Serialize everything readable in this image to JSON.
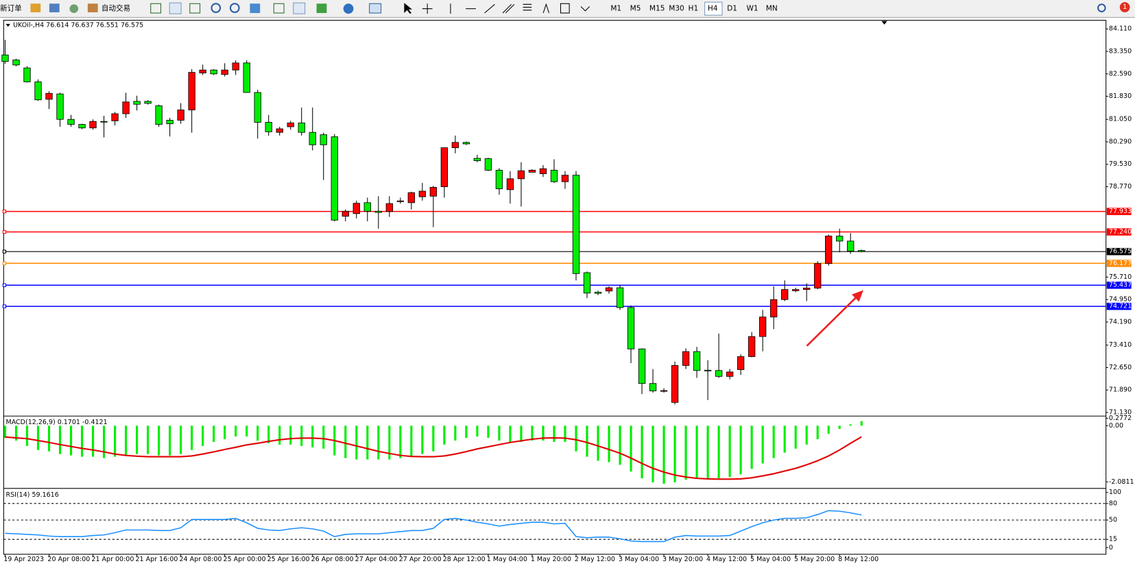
{
  "toolbar": {
    "new_order": "新订单",
    "auto_trading": "自动交易",
    "timeframes": [
      "M1",
      "M5",
      "M15",
      "M30",
      "H1",
      "H4",
      "D1",
      "W1",
      "MN"
    ],
    "notifications": 1
  },
  "chart_data": [
    {
      "type": "candlestick",
      "title": "UKOil-,H4  76.614 76.637 76.551 76.575",
      "up_color": "#ff0000",
      "down_color": "#00ee00",
      "categories": [
        "19 Apr 2023",
        null,
        null,
        null,
        "20 Apr 08:00",
        null,
        null,
        null,
        "21 Apr 00:00",
        null,
        null,
        null,
        "21 Apr 16:00",
        null,
        null,
        null,
        "24 Apr 08:00",
        null,
        null,
        null,
        "25 Apr 00:00",
        null,
        null,
        null,
        "25 Apr 16:00",
        null,
        null,
        null,
        "26 Apr 08:00",
        null,
        null,
        null,
        "27 Apr 04:00",
        null,
        null,
        null,
        "27 Apr 20:00",
        null,
        null,
        null,
        "28 Apr 12:00",
        null,
        null,
        null,
        "1 May 04:00",
        null,
        null,
        null,
        "1 May 20:00",
        null,
        null,
        null,
        "2 May 12:00",
        null,
        null,
        null,
        "3 May 04:00",
        null,
        null,
        null,
        "3 May 20:00",
        null,
        null,
        null,
        "4 May 12:00",
        null,
        null,
        null,
        "5 May 04:00",
        null,
        null,
        null,
        "5 May 20:00",
        null,
        null,
        null,
        "8 May 12:00",
        null,
        null
      ],
      "open": [
        83.23,
        83.06,
        82.79,
        82.32,
        81.73,
        81.91,
        81.05,
        80.88,
        80.76,
        80.98,
        81.0,
        81.24,
        81.66,
        81.66,
        81.51,
        81.02,
        81.02,
        81.37,
        82.62,
        82.72,
        82.57,
        82.72,
        82.96,
        81.96,
        80.95,
        80.61,
        80.8,
        80.93,
        80.61,
        80.53,
        80.46,
        77.77,
        77.86,
        78.23,
        77.94,
        77.93,
        78.28,
        78.23,
        78.43,
        78.45,
        78.77,
        80.09,
        80.27,
        79.73,
        79.72,
        79.33,
        78.67,
        79.04,
        79.26,
        79.21,
        79.33,
        78.94,
        79.16,
        75.86,
        75.2,
        75.24,
        75.35,
        74.68,
        73.28,
        72.11,
        71.86,
        71.47,
        72.72,
        73.19,
        72.56,
        72.55,
        72.35,
        72.58,
        73.02,
        73.7,
        74.36,
        74.95,
        75.25,
        75.29,
        75.34,
        76.17,
        77.1,
        76.93,
        76.614
      ],
      "high": [
        83.74,
        83.1,
        82.85,
        82.4,
        82.0,
        81.95,
        81.2,
        80.9,
        81.05,
        81.17,
        81.3,
        81.95,
        81.85,
        81.7,
        81.55,
        81.1,
        81.6,
        82.75,
        82.9,
        82.75,
        82.95,
        83.05,
        83.05,
        82.05,
        81.2,
        80.8,
        81.0,
        81.45,
        81.45,
        80.6,
        80.55,
        78.0,
        78.3,
        78.4,
        78.45,
        78.45,
        78.4,
        78.6,
        78.9,
        78.8,
        80.1,
        80.5,
        80.3,
        79.85,
        79.75,
        79.4,
        79.3,
        79.6,
        79.36,
        79.5,
        79.7,
        79.3,
        79.3,
        75.9,
        75.25,
        75.4,
        75.45,
        74.75,
        73.3,
        72.6,
        71.95,
        72.85,
        73.3,
        73.35,
        72.9,
        73.8,
        72.6,
        73.1,
        73.85,
        74.6,
        75.4,
        75.6,
        75.35,
        75.5,
        76.25,
        77.15,
        77.35,
        77.2,
        76.637
      ],
      "low": [
        82.93,
        82.85,
        82.3,
        81.68,
        81.4,
        80.8,
        80.8,
        80.72,
        80.7,
        80.44,
        80.85,
        81.1,
        81.35,
        81.55,
        80.8,
        80.47,
        80.9,
        80.6,
        82.55,
        82.55,
        82.5,
        82.55,
        81.95,
        80.4,
        80.5,
        80.5,
        80.7,
        80.5,
        80.0,
        79.0,
        77.6,
        77.6,
        77.7,
        77.6,
        77.35,
        77.75,
        78.2,
        78.0,
        78.3,
        77.4,
        78.4,
        79.9,
        80.18,
        79.6,
        79.3,
        78.5,
        78.2,
        78.1,
        79.25,
        79.1,
        78.9,
        78.7,
        75.6,
        75.0,
        75.1,
        75.15,
        74.6,
        72.8,
        71.75,
        71.8,
        71.8,
        71.4,
        72.6,
        72.3,
        71.55,
        72.3,
        72.25,
        72.4,
        73.0,
        73.2,
        73.95,
        74.9,
        75.2,
        74.9,
        75.3,
        76.1,
        76.55,
        76.5,
        76.551
      ],
      "close": [
        83.01,
        82.89,
        82.32,
        81.71,
        81.93,
        81.05,
        80.88,
        80.76,
        80.98,
        80.97,
        81.24,
        81.64,
        81.56,
        81.59,
        80.88,
        80.9,
        81.37,
        82.64,
        82.72,
        82.59,
        82.72,
        82.96,
        81.96,
        80.95,
        80.63,
        80.73,
        80.93,
        80.61,
        80.19,
        80.19,
        77.64,
        77.94,
        78.21,
        77.94,
        77.9,
        78.2,
        78.29,
        78.57,
        78.62,
        78.75,
        80.09,
        80.27,
        80.22,
        79.65,
        79.33,
        78.7,
        79.04,
        79.31,
        79.33,
        79.38,
        78.94,
        79.16,
        75.83,
        75.17,
        75.16,
        75.35,
        74.68,
        73.28,
        72.11,
        71.86,
        71.87,
        72.72,
        73.19,
        72.55,
        72.55,
        72.35,
        72.5,
        73.02,
        73.7,
        74.36,
        74.95,
        75.29,
        75.29,
        75.34,
        76.17,
        77.1,
        76.93,
        76.59,
        76.575
      ],
      "ylim": [
        71.057,
        84.404
      ],
      "yticks": [
        {
          "value": 84.11,
          "label": "84.110"
        },
        {
          "value": 83.35,
          "label": "83.350"
        },
        {
          "value": 82.59,
          "label": "82.590"
        },
        {
          "value": 81.83,
          "label": "81.830"
        },
        {
          "value": 81.05,
          "label": "81.050"
        },
        {
          "value": 80.29,
          "label": "80.290"
        },
        {
          "value": 79.53,
          "label": "79.530"
        },
        {
          "value": 78.77,
          "label": "78.770"
        },
        {
          "value": 75.71,
          "label": "75.710"
        },
        {
          "value": 74.95,
          "label": "74.950"
        },
        {
          "value": 74.19,
          "label": "74.190"
        },
        {
          "value": 73.41,
          "label": "73.410"
        },
        {
          "value": 72.65,
          "label": "72.650"
        },
        {
          "value": 71.89,
          "label": "71.890"
        },
        {
          "value": 71.13,
          "label": "71.130"
        }
      ],
      "levels": [
        {
          "value": 77.933,
          "color": "#ff0000"
        },
        {
          "value": 77.24,
          "label": "77.240",
          "color": "#ff0000"
        },
        {
          "value": 76.575,
          "color": "#000000"
        },
        {
          "value": 76.177,
          "color": "#ff8c00"
        },
        {
          "value": 75.437,
          "color": "#0000ff"
        },
        {
          "value": 74.721,
          "color": "#0000ff"
        }
      ]
    },
    {
      "type": "macd",
      "title": "MACD(12,26,9) 0.1701 -0.4121",
      "color": "#00ee00",
      "signal_color": "#e00000",
      "values": [
        -0.45,
        -0.55,
        -0.75,
        -0.9,
        -0.95,
        -1.05,
        -1.1,
        -1.15,
        -1.15,
        -1.2,
        -1.15,
        -1.1,
        -1.05,
        -1.05,
        -1.1,
        -1.1,
        -1.05,
        -0.9,
        -0.75,
        -0.6,
        -0.5,
        -0.4,
        -0.4,
        -0.55,
        -0.65,
        -0.7,
        -0.7,
        -0.75,
        -0.8,
        -0.85,
        -1.1,
        -1.2,
        -1.25,
        -1.25,
        -1.25,
        -1.25,
        -1.2,
        -1.15,
        -1.05,
        -0.95,
        -0.7,
        -0.55,
        -0.45,
        -0.4,
        -0.45,
        -0.55,
        -0.6,
        -0.6,
        -0.55,
        -0.55,
        -0.6,
        -0.6,
        -0.95,
        -1.15,
        -1.3,
        -1.35,
        -1.45,
        -1.7,
        -1.95,
        -2.1,
        -2.15,
        -2.1,
        -2.0,
        -1.95,
        -1.95,
        -1.95,
        -1.9,
        -1.8,
        -1.6,
        -1.4,
        -1.2,
        -1.0,
        -0.85,
        -0.7,
        -0.5,
        -0.3,
        -0.12,
        0.05,
        0.1701
      ],
      "signal": [
        -0.42,
        -0.45,
        -0.48,
        -0.55,
        -0.62,
        -0.7,
        -0.77,
        -0.84,
        -0.9,
        -0.97,
        -1.05,
        -1.1,
        -1.13,
        -1.15,
        -1.15,
        -1.15,
        -1.15,
        -1.12,
        -1.05,
        -0.97,
        -0.88,
        -0.8,
        -0.71,
        -0.65,
        -0.58,
        -0.52,
        -0.48,
        -0.46,
        -0.46,
        -0.48,
        -0.55,
        -0.65,
        -0.75,
        -0.85,
        -0.95,
        -1.03,
        -1.1,
        -1.14,
        -1.15,
        -1.15,
        -1.12,
        -1.05,
        -0.96,
        -0.86,
        -0.78,
        -0.7,
        -0.62,
        -0.56,
        -0.5,
        -0.46,
        -0.45,
        -0.46,
        -0.52,
        -0.62,
        -0.75,
        -0.88,
        -1.02,
        -1.2,
        -1.4,
        -1.58,
        -1.72,
        -1.83,
        -1.9,
        -1.95,
        -1.97,
        -1.98,
        -1.98,
        -1.97,
        -1.93,
        -1.86,
        -1.78,
        -1.68,
        -1.58,
        -1.45,
        -1.3,
        -1.12,
        -0.9,
        -0.65,
        -0.4121
      ],
      "ylim": [
        -2.27,
        0.2772
      ],
      "yticks": [
        0.2772,
        {
          "value": 0,
          "label": "0.00"
        },
        -2.0811
      ]
    },
    {
      "type": "rsi",
      "title": "RSI(14) 59.1616",
      "color": "#1e90ff",
      "values": [
        26,
        25,
        24,
        23,
        21,
        20,
        20,
        20,
        22,
        23,
        27,
        32,
        32,
        32,
        31,
        31,
        36,
        51,
        51,
        51,
        51,
        53,
        45,
        35,
        32,
        31,
        34,
        36,
        34,
        30,
        20,
        24,
        25,
        25,
        25,
        27,
        29,
        31,
        31,
        35,
        51,
        53,
        50,
        46,
        43,
        39,
        42,
        44,
        46,
        46,
        43,
        44,
        20,
        18,
        19,
        19,
        16,
        12,
        11,
        11,
        11,
        19,
        22,
        21,
        21,
        21,
        22,
        30,
        38,
        45,
        50,
        53,
        53,
        54,
        60,
        67,
        66,
        63,
        59.1616
      ],
      "ylim": [
        -12,
        106
      ],
      "yticks": [
        100,
        80,
        50,
        15,
        0
      ],
      "levels": [
        80,
        50,
        15
      ]
    }
  ]
}
